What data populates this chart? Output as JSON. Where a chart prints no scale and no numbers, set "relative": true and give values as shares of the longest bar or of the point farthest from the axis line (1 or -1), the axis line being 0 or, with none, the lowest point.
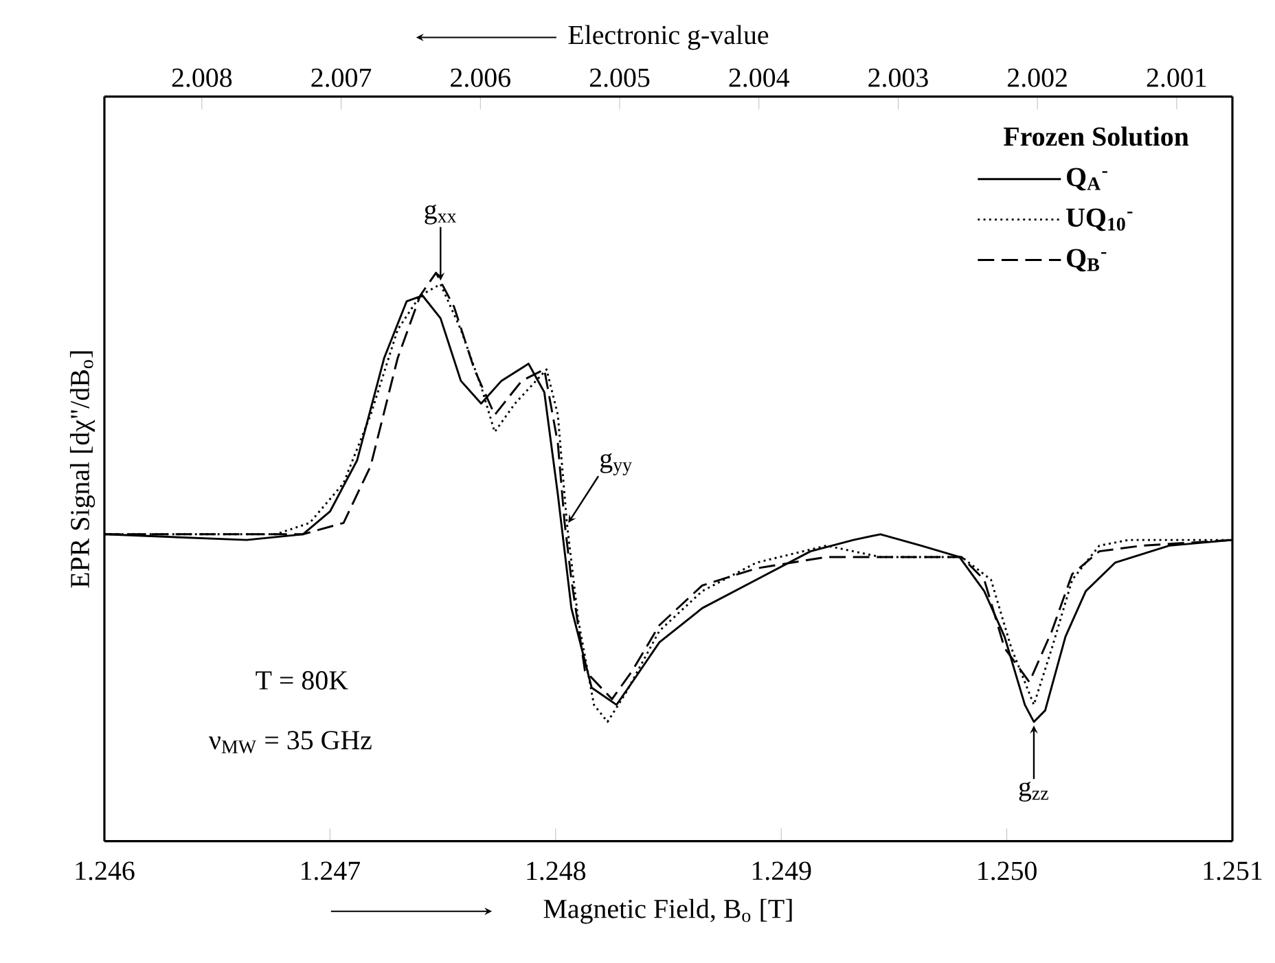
{
  "chart_data": {
    "type": "line",
    "relative": true,
    "xlabel": "Magnetic Field, B$_{o}$ [T]",
    "ylabel": "EPR Signal [dχ\"/dB$_{o}$]",
    "x2label": "Electronic g-value",
    "xlim": [
      1.246,
      1.251
    ],
    "xticks": [
      1.246,
      1.247,
      1.248,
      1.249,
      {
        "value": 1.25,
        "label": "1.250"
      },
      1.251
    ],
    "x2lim": [
      2.0087,
      2.0006
    ],
    "x2ticks": [
      2.008,
      2.007,
      2.006,
      2.005,
      2.004,
      2.003,
      2.002,
      2.001
    ],
    "legend": "top right",
    "legend_title": "Frozen Solution",
    "series": [
      {
        "name": "Q$_{A}$$^{-}$",
        "color": "#000000",
        "line_style": "solid",
        "x": [
          1.246,
          1.24663,
          1.24688,
          1.247,
          1.24712,
          1.24724,
          1.24734,
          1.24741,
          1.24749,
          1.24758,
          1.24767,
          1.24776,
          1.24788,
          1.24795,
          1.24801,
          1.24807,
          1.24816,
          1.24827,
          1.24834,
          1.24846,
          1.24865,
          1.24889,
          1.24913,
          1.24932,
          1.24944,
          1.24962,
          1.24979,
          1.2499,
          1.24999,
          1.25008,
          1.25012,
          1.25017,
          1.25026,
          1.25035,
          1.25048,
          1.25072,
          1.251
        ],
        "values": [
          0.54,
          0.53,
          0.54,
          0.58,
          0.67,
          0.85,
          0.95,
          0.96,
          0.92,
          0.81,
          0.77,
          0.81,
          0.84,
          0.79,
          0.61,
          0.41,
          0.27,
          0.24,
          0.28,
          0.35,
          0.41,
          0.46,
          0.51,
          0.53,
          0.54,
          0.52,
          0.5,
          0.44,
          0.36,
          0.24,
          0.21,
          0.23,
          0.36,
          0.44,
          0.49,
          0.52,
          0.53
        ]
      },
      {
        "name": "UQ$_{10}$$^{-}$",
        "color": "#000000",
        "line_style": "dotted",
        "x": [
          1.246,
          1.24676,
          1.24691,
          1.24706,
          1.24718,
          1.2473,
          1.2474,
          1.24749,
          1.24758,
          1.24767,
          1.24773,
          1.24782,
          1.24796,
          1.24801,
          1.24805,
          1.2481,
          1.24817,
          1.24823,
          1.24831,
          1.24846,
          1.24865,
          1.24889,
          1.2492,
          1.24944,
          1.2498,
          1.24993,
          1.25002,
          1.25012,
          1.2502,
          1.25029,
          1.25041,
          1.25054,
          1.251
        ],
        "values": [
          0.54,
          0.54,
          0.56,
          0.63,
          0.75,
          0.9,
          0.96,
          0.98,
          0.9,
          0.8,
          0.72,
          0.77,
          0.83,
          0.75,
          0.56,
          0.39,
          0.24,
          0.21,
          0.26,
          0.37,
          0.44,
          0.49,
          0.52,
          0.5,
          0.5,
          0.46,
          0.34,
          0.24,
          0.34,
          0.46,
          0.52,
          0.53,
          0.53
        ]
      },
      {
        "name": "Q$_{B}$$^{-}$",
        "color": "#000000",
        "line_style": "dashed",
        "x": [
          1.246,
          1.24688,
          1.24706,
          1.24718,
          1.2473,
          1.2474,
          1.24747,
          1.24755,
          1.24764,
          1.24773,
          1.24785,
          1.24795,
          1.24801,
          1.24804,
          1.24807,
          1.24813,
          1.24825,
          1.24834,
          1.24846,
          1.24865,
          1.24889,
          1.2492,
          1.2498,
          1.2499,
          1.24999,
          1.2501,
          1.2502,
          1.25029,
          1.25041,
          1.2506,
          1.251
        ],
        "values": [
          0.54,
          0.54,
          0.56,
          0.66,
          0.85,
          0.96,
          1,
          0.94,
          0.83,
          0.75,
          0.81,
          0.83,
          0.7,
          0.56,
          0.46,
          0.3,
          0.25,
          0.3,
          0.38,
          0.45,
          0.48,
          0.5,
          0.5,
          0.46,
          0.34,
          0.28,
          0.37,
          0.47,
          0.51,
          0.52,
          0.53
        ]
      }
    ],
    "annotations": [
      {
        "text": "g$_{xx}$",
        "x": 1.24749,
        "y": 0.98
      },
      {
        "text": "g$_{yy}$",
        "x": 1.24804,
        "y": 0.56
      },
      {
        "text": "g$_{zz}$",
        "x": 1.25012,
        "y": 0.21
      },
      "T = 80K",
      "ν$_{MW}$ = 35 GHz"
    ]
  }
}
